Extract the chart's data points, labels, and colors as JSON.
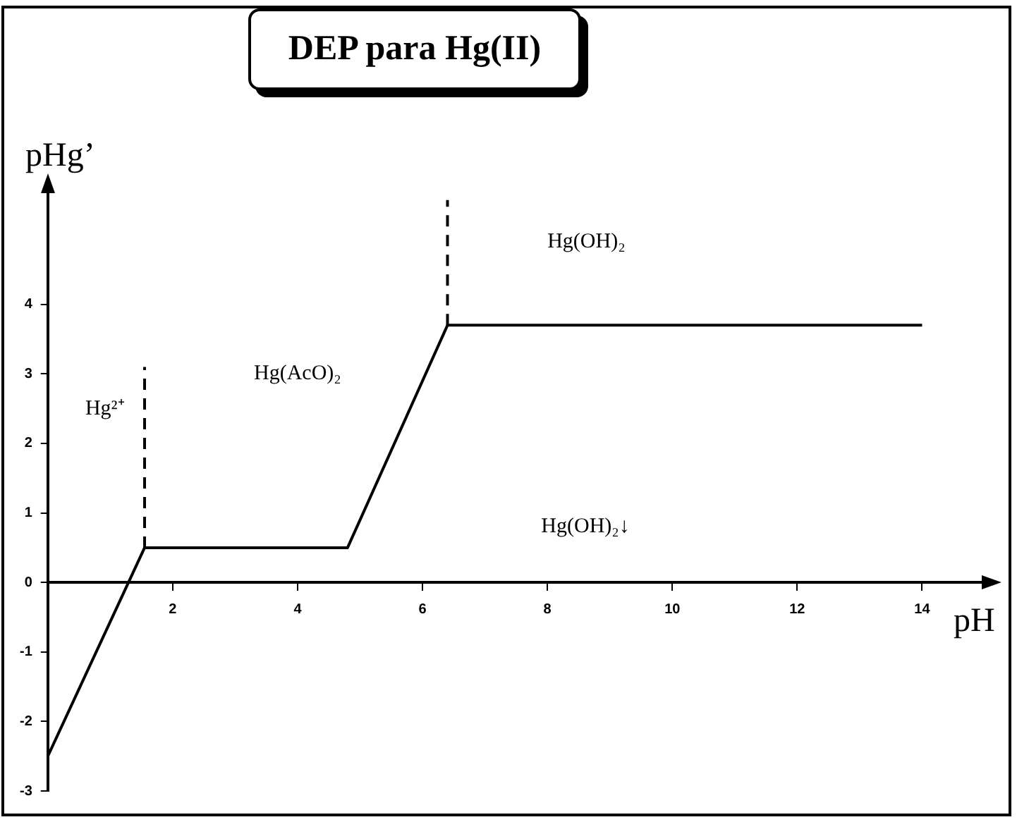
{
  "chart_data": {
    "type": "line",
    "title": "DEP para Hg(II)",
    "xlabel": "pH",
    "ylabel": "pHg’",
    "xlim": [
      0,
      15
    ],
    "xticks": [
      2,
      4,
      6,
      8,
      10,
      12,
      14
    ],
    "ylim": [
      -3,
      5.6
    ],
    "yticks": [
      -3,
      -2,
      -1,
      0,
      1,
      2,
      3,
      4
    ],
    "grid": false,
    "legend": false,
    "marker": "none",
    "line_style": "solid",
    "series": [
      {
        "color": "#000000",
        "x": [
          0,
          1.55,
          4.8,
          6.4,
          14
        ],
        "values": [
          -2.5,
          0.5,
          0.5,
          3.7,
          3.7
        ]
      },
      {
        "color": "#000000",
        "line_style": "dashed",
        "x": [
          1.55,
          1.55
        ],
        "values": [
          0.5,
          3.1
        ]
      },
      {
        "color": "#000000",
        "line_style": "dashed",
        "x": [
          6.4,
          6.4
        ],
        "values": [
          3.7,
          5.5
        ]
      }
    ],
    "annotations": [
      "Hg²⁺",
      "Hg(AcO)₂",
      "Hg(OH)₂",
      "Hg(OH)₂↓"
    ]
  }
}
